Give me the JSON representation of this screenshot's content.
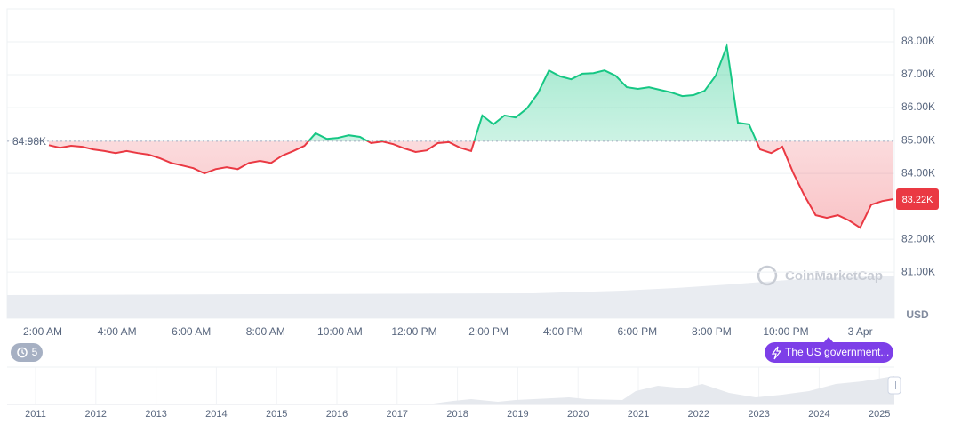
{
  "chart_data": [
    {
      "type": "line",
      "values": [
        84860,
        84780,
        84840,
        84810,
        84730,
        84680,
        84620,
        84680,
        84620,
        84570,
        84460,
        84320,
        84240,
        84160,
        84000,
        84130,
        84190,
        84130,
        84320,
        84380,
        84320,
        84540,
        84680,
        84840,
        85220,
        85050,
        85080,
        85160,
        85110,
        84920,
        84970,
        84890,
        84760,
        84650,
        84700,
        84920,
        84950,
        84780,
        84680,
        85760,
        85490,
        85760,
        85700,
        85970,
        86430,
        87130,
        86950,
        86860,
        87030,
        87050,
        87130,
        86970,
        86620,
        86570,
        86620,
        86540,
        86460,
        86350,
        86380,
        86510,
        86970,
        87860,
        85540,
        85490,
        84730,
        84620,
        84810,
        84000,
        83320,
        82730,
        82650,
        82730,
        82570,
        82350,
        83050,
        83160,
        83220
      ],
      "colors": {
        "up": "#16c784",
        "down": "#ea3943"
      },
      "ylim": [
        79600,
        89000
      ],
      "yticks": [
        {
          "value": 81000,
          "label": "81.00K"
        },
        {
          "value": 82000,
          "label": "82.00K"
        },
        {
          "value": 84000,
          "label": "84.00K"
        },
        {
          "value": 85000,
          "label": "85.00K"
        },
        {
          "value": 86000,
          "label": "86.00K"
        },
        {
          "value": 87000,
          "label": "87.00K"
        },
        {
          "value": 88000,
          "label": "88.00K"
        }
      ],
      "grid": true,
      "baseline": {
        "value": 84980,
        "label": "84.98K"
      },
      "last_price": {
        "value": 83220,
        "label": "83.22K"
      },
      "x_labels": [
        "2:00 AM",
        "4:00 AM",
        "6:00 AM",
        "8:00 AM",
        "10:00 AM",
        "12:00 PM",
        "2:00 PM",
        "4:00 PM",
        "6:00 PM",
        "8:00 PM",
        "10:00 PM",
        "3 Apr"
      ],
      "y_unit": "USD",
      "watermark": "CoinMarketCap",
      "event_count": 5,
      "event_label": "The US government..."
    },
    {
      "type": "navigator",
      "categories": [
        "2011",
        "2012",
        "2013",
        "2014",
        "2015",
        "2016",
        "2017",
        "2018",
        "2019",
        "2020",
        "2021",
        "2022",
        "2023",
        "2024",
        "2025"
      ]
    }
  ]
}
